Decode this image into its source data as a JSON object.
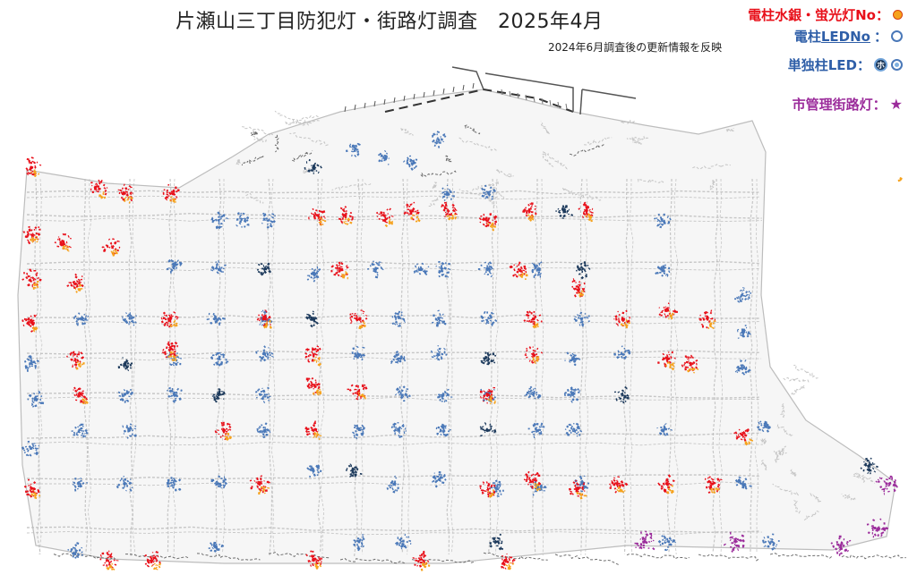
{
  "title": "片瀬山三丁目防犯灯・街路灯調査　2025年4月",
  "subtitle": "2024年6月調査後の更新情報を反映",
  "legend": {
    "mercury": {
      "label": "電柱水銀・蛍光灯No",
      "sep": "：",
      "color": "#f6a21c"
    },
    "led_pole": {
      "label_a": "電柱",
      "label_b": "LEDNo",
      "sep": "：",
      "color": "#4a78b8"
    },
    "single_led": {
      "label": "単独柱LED",
      "sep": "：",
      "glyph": "ホ"
    },
    "city_light": {
      "label": "市管理街路灯",
      "sep": "：",
      "glyph": "★"
    }
  },
  "colors": {
    "road": "#bdbdbd",
    "road_dark": "#555555",
    "red_marker": "#e8101a",
    "orange_marker": "#f6a21c",
    "blue_marker": "#4a78b8",
    "dark_marker": "#1d3a5c",
    "purple_marker": "#9b2c9b"
  }
}
